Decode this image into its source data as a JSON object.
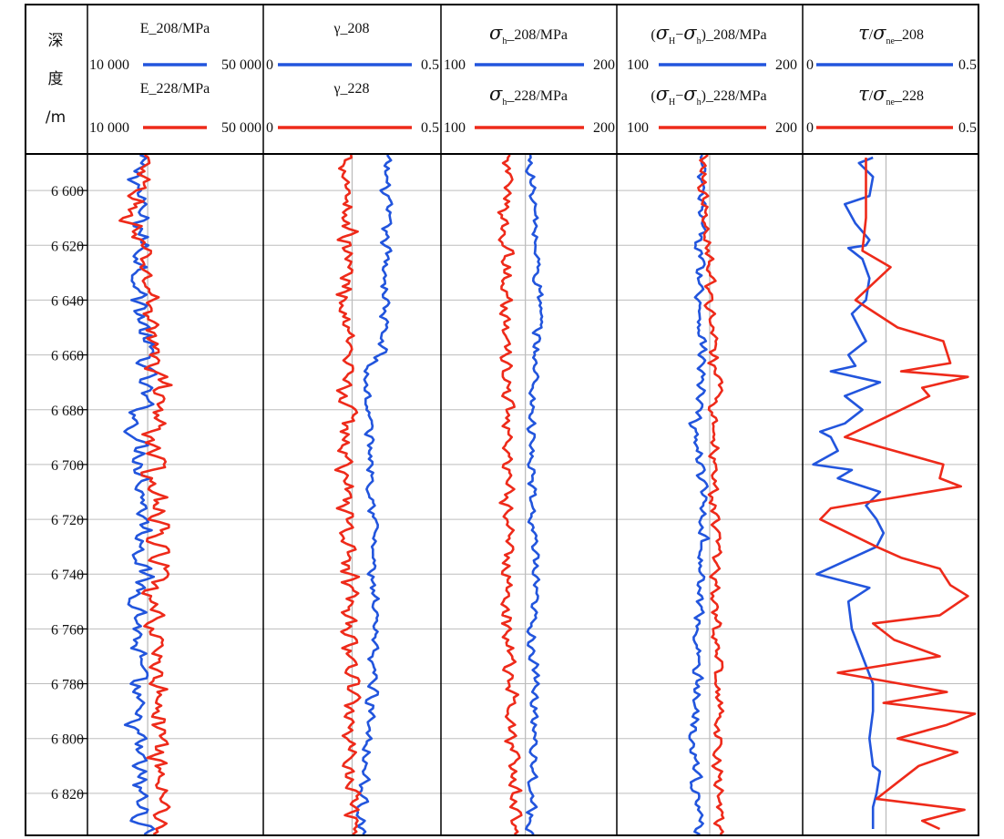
{
  "depth_header": {
    "line1": "深",
    "line2": "度",
    "line3": "/m"
  },
  "colors": {
    "well_208": "#2255dd",
    "well_228": "#ee2a1a",
    "grid": "#bdbdbd",
    "border": "#000000"
  },
  "tracks": [
    {
      "title_top": "E_208/MPa",
      "title_bottom": "E_228/MPa",
      "min_label": "10 000",
      "max_label": "50 000"
    },
    {
      "title_top": "γ_208",
      "title_bottom": "γ_228",
      "min_label": "0",
      "max_label": "0.5"
    },
    {
      "title_top_sym": "σ",
      "title_top_sub": "h",
      "title_top_rest": "_208/MPa",
      "title_bottom_sym": "σ",
      "title_bottom_sub": "h",
      "title_bottom_rest": "_228/MPa",
      "min_label": "100",
      "max_label": "200"
    },
    {
      "title_top_open": "(",
      "title_top_sym1": "σ",
      "title_top_sub1": "H",
      "title_top_minus": "−",
      "title_top_sym2": "σ",
      "title_top_sub2": "h",
      "title_top_rest": ")_208/MPa",
      "title_bottom_open": "(",
      "title_bottom_sym1": "σ",
      "title_bottom_sub1": "H",
      "title_bottom_minus": "−",
      "title_bottom_sym2": "σ",
      "title_bottom_sub2": "h",
      "title_bottom_rest": ")_228/MPa",
      "min_label": "100",
      "max_label": "200"
    },
    {
      "title_top_sym1": "τ",
      "title_top_slash": "/",
      "title_top_sym2": "σ",
      "title_top_sub": "ne",
      "title_top_rest": "_208",
      "title_bottom_sym1": "τ",
      "title_bottom_slash": "/",
      "title_bottom_sym2": "σ",
      "title_bottom_sub": "ne",
      "title_bottom_rest": "_228",
      "min_label": "0",
      "max_label": "0.5"
    }
  ],
  "chart_data": {
    "type": "line",
    "depth_axis": {
      "range": [
        6587,
        6835
      ],
      "ticks": [
        6600,
        6620,
        6640,
        6660,
        6680,
        6700,
        6720,
        6740,
        6760,
        6780,
        6800,
        6820
      ],
      "tick_labels": [
        "6 600",
        "6 620",
        "6 640",
        "6 660",
        "6 680",
        "6 700",
        "6 720",
        "6 740",
        "6 760",
        "6 780",
        "6 800",
        "6 820"
      ]
    },
    "grid": true,
    "tracks": [
      {
        "xlim": [
          10000,
          50000
        ],
        "centerline": 23700,
        "series": [
          {
            "name": "E_208/MPa",
            "color": "#2255dd",
            "step": 1,
            "depth": [
              6587,
              6600,
              6620,
              6640,
              6660,
              6680,
              6685,
              6700,
              6720,
              6740,
              6760,
              6780,
              6790,
              6806,
              6820,
              6835
            ],
            "values": [
              21500,
              21500,
              22500,
              21800,
              23500,
              22500,
              20500,
              22800,
              23000,
              22500,
              21500,
              21000,
              20500,
              21500,
              22000,
              22800
            ],
            "amplitude": 1800
          },
          {
            "name": "E_228/MPa",
            "color": "#ee2a1a",
            "step": 1,
            "depth": [
              6587,
              6600,
              6610,
              6620,
              6640,
              6653,
              6660,
              6675,
              6680,
              6700,
              6720,
              6740,
              6745,
              6760,
              6780,
              6800,
              6820,
              6835
            ],
            "values": [
              22500,
              21500,
              19500,
              22000,
              24500,
              24500,
              25000,
              27500,
              25500,
              25000,
              26000,
              26500,
              23500,
              25500,
              26000,
              26200,
              27000,
              26500
            ],
            "amplitude": 1900
          }
        ]
      },
      {
        "xlim": [
          0,
          0.5
        ],
        "centerline": 0.25,
        "series": [
          {
            "name": "γ_208",
            "color": "#2255dd",
            "step": 1,
            "depth": [
              6587,
              6600,
              6640,
              6660,
              6665,
              6680,
              6700,
              6720,
              6740,
              6760,
              6780,
              6800,
              6820,
              6835
            ],
            "values": [
              0.345,
              0.345,
              0.345,
              0.33,
              0.29,
              0.295,
              0.305,
              0.315,
              0.305,
              0.31,
              0.31,
              0.3,
              0.28,
              0.275
            ],
            "amplitude": 0.012
          },
          {
            "name": "γ_228",
            "color": "#ee2a1a",
            "step": 1,
            "depth": [
              6587,
              6600,
              6640,
              6660,
              6680,
              6700,
              6720,
              6740,
              6760,
              6780,
              6800,
              6820,
              6835
            ],
            "values": [
              0.24,
              0.24,
              0.235,
              0.225,
              0.235,
              0.23,
              0.235,
              0.24,
              0.24,
              0.25,
              0.245,
              0.255,
              0.26
            ],
            "amplitude": 0.02
          }
        ]
      },
      {
        "xlim": [
          100,
          200
        ],
        "centerline": 148,
        "series": [
          {
            "name": "σh_208/MPa",
            "color": "#2255dd",
            "step": 1,
            "depth": [
              6587,
              6600,
              6640,
              6660,
              6680,
              6700,
              6720,
              6740,
              6760,
              6780,
              6800,
              6820,
              6835
            ],
            "values": [
              150,
              152,
              156,
              154,
              152,
              151,
              152,
              153,
              152,
              153,
              154,
              152,
              151
            ],
            "amplitude": 2.2
          },
          {
            "name": "σh_228/MPa",
            "color": "#ee2a1a",
            "step": 1,
            "depth": [
              6587,
              6600,
              6640,
              6660,
              6680,
              6700,
              6720,
              6740,
              6760,
              6780,
              6800,
              6820,
              6835
            ],
            "values": [
              138,
              137,
              137,
              136,
              138,
              137,
              138,
              138,
              138,
              140,
              140,
              142,
              142
            ],
            "amplitude": 3.0
          }
        ]
      },
      {
        "xlim": [
          100,
          200
        ],
        "centerline": 150,
        "series": [
          {
            "name": "(σH−σh)_208/MPa",
            "color": "#2255dd",
            "step": 1,
            "depth": [
              6587,
              6600,
              6640,
              6660,
              6680,
              6685,
              6700,
              6720,
              6740,
              6760,
              6780,
              6806,
              6820,
              6835
            ],
            "values": [
              145,
              145,
              145,
              146,
              144,
              141,
              145,
              147,
              145,
              144,
              143,
              142,
              143,
              145
            ],
            "amplitude": 2.2
          },
          {
            "name": "(σH−σh)_228/MPa",
            "color": "#ee2a1a",
            "step": 1,
            "depth": [
              6587,
              6600,
              6620,
              6640,
              6660,
              6675,
              6680,
              6700,
              6720,
              6740,
              6760,
              6780,
              6800,
              6820,
              6835
            ],
            "values": [
              148,
              147,
              150,
              150,
              151,
              156,
              152,
              152,
              153,
              153,
              153,
              154,
              154,
              155,
              155
            ],
            "amplitude": 2.2
          }
        ]
      },
      {
        "xlim": [
          0,
          0.5
        ],
        "centerline": 0.237,
        "series": [
          {
            "name": "τ/σne_208",
            "color": "#2255dd",
            "step": 0,
            "depth": [
              6588,
              6590,
              6595,
              6602,
              6605,
              6612,
              6618,
              6620,
              6621,
              6625,
              6632,
              6640,
              6645,
              6650,
              6655,
              6660,
              6664,
              6666,
              6670,
              6675,
              6680,
              6685,
              6688,
              6690,
              6695,
              6700,
              6702,
              6705,
              6710,
              6715,
              6720,
              6725,
              6730,
              6740,
              6745,
              6750,
              6760,
              6770,
              6780,
              6790,
              6800,
              6810,
              6812,
              6820,
              6825,
              6830,
              6833
            ],
            "values": [
              0.2,
              0.16,
              0.2,
              0.19,
              0.12,
              0.15,
              0.19,
              0.18,
              0.13,
              0.17,
              0.19,
              0.18,
              0.14,
              0.16,
              0.18,
              0.13,
              0.15,
              0.08,
              0.22,
              0.12,
              0.17,
              0.12,
              0.05,
              0.08,
              0.1,
              0.03,
              0.14,
              0.1,
              0.22,
              0.18,
              0.21,
              0.23,
              0.21,
              0.04,
              0.19,
              0.13,
              0.14,
              0.17,
              0.2,
              0.2,
              0.19,
              0.2,
              0.22,
              0.21,
              0.2,
              0.2,
              0.2
            ],
            "amplitude": 0
          },
          {
            "name": "τ/σne_228",
            "color": "#ee2a1a",
            "step": 0,
            "depth": [
              6588,
              6600,
              6610,
              6622,
              6628,
              6640,
              6650,
              6655,
              6663,
              6666,
              6668,
              6672,
              6675,
              6690,
              6700,
              6705,
              6708,
              6716,
              6720,
              6730,
              6734,
              6738,
              6744,
              6748,
              6755,
              6758,
              6764,
              6770,
              6776,
              6783,
              6787,
              6791,
              6795,
              6800,
              6805,
              6810,
              6816,
              6822,
              6826,
              6830,
              6833
            ],
            "values": [
              0.18,
              0.18,
              0.18,
              0.17,
              0.25,
              0.15,
              0.27,
              0.4,
              0.42,
              0.28,
              0.47,
              0.34,
              0.36,
              0.12,
              0.4,
              0.39,
              0.45,
              0.08,
              0.05,
              0.21,
              0.28,
              0.39,
              0.42,
              0.47,
              0.39,
              0.2,
              0.26,
              0.39,
              0.1,
              0.41,
              0.23,
              0.49,
              0.41,
              0.27,
              0.44,
              0.33,
              0.27,
              0.21,
              0.46,
              0.34,
              0.39
            ],
            "amplitude": 0
          }
        ]
      }
    ]
  }
}
